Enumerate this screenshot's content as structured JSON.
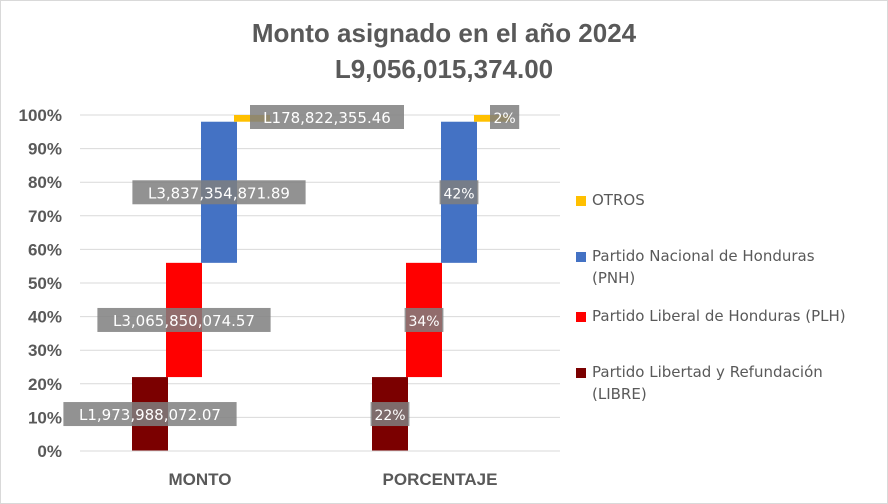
{
  "chart_data": {
    "type": "bar",
    "stacked": true,
    "title": "Monto asignado en el año 2024",
    "subtitle": "L9,056,015,374.00",
    "categories": [
      "MONTO",
      "PORCENTAJE"
    ],
    "ylim": [
      0,
      100
    ],
    "yticks": [
      "0%",
      "10%",
      "20%",
      "30%",
      "40%",
      "50%",
      "60%",
      "70%",
      "80%",
      "90%",
      "100%"
    ],
    "grid": true,
    "legend_position": "right",
    "series": [
      {
        "name": "Partido Libertad y Refundación (LIBRE)",
        "color": "#7b0000",
        "values": [
          22,
          22
        ],
        "labels": [
          "L1,973,988,072.07",
          "22%"
        ]
      },
      {
        "name": "Partido Liberal de Honduras (PLH)",
        "color": "#ff0000",
        "values": [
          34,
          34
        ],
        "labels": [
          "L3,065,850,074.57",
          "34%"
        ]
      },
      {
        "name": "Partido Nacional de Honduras (PNH)",
        "color": "#4472c4",
        "values": [
          42,
          42
        ],
        "labels": [
          "L3,837,354,871.89",
          "42%"
        ]
      },
      {
        "name": "OTROS",
        "color": "#ffc000",
        "values": [
          2,
          2
        ],
        "labels": [
          "L178,822,355.46",
          "2%"
        ]
      }
    ]
  },
  "legend": {
    "items": [
      {
        "line1": "OTROS",
        "line2": "",
        "color": "#ffc000"
      },
      {
        "line1": "Partido Nacional de Honduras",
        "line2": "(PNH)",
        "color": "#4472c4"
      },
      {
        "line1": "Partido Liberal de Honduras (PLH)",
        "line2": "",
        "color": "#ff0000"
      },
      {
        "line1": "Partido Libertad y Refundación",
        "line2": "(LIBRE)",
        "color": "#7b0000"
      }
    ]
  }
}
